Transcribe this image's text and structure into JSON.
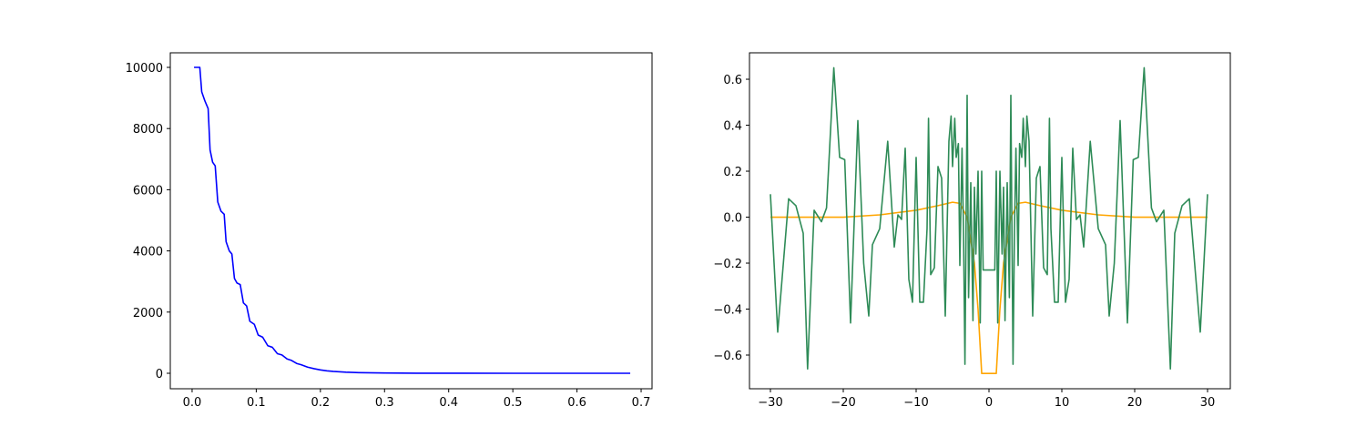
{
  "chart_data": [
    {
      "type": "line",
      "x": [
        0.003,
        0.012,
        0.015,
        0.02,
        0.025,
        0.028,
        0.032,
        0.036,
        0.04,
        0.045,
        0.05,
        0.053,
        0.058,
        0.062,
        0.066,
        0.07,
        0.075,
        0.08,
        0.085,
        0.09,
        0.097,
        0.103,
        0.11,
        0.118,
        0.125,
        0.133,
        0.14,
        0.148,
        0.155,
        0.163,
        0.17,
        0.18,
        0.19,
        0.2,
        0.21,
        0.22,
        0.24,
        0.26,
        0.3,
        0.35,
        0.4,
        0.5,
        0.6,
        0.683
      ],
      "series": [
        {
          "color": "#0000ff",
          "values": [
            10000,
            10000,
            9200,
            8900,
            8650,
            7300,
            6900,
            6780,
            5600,
            5300,
            5200,
            4300,
            4000,
            3900,
            3100,
            2950,
            2900,
            2300,
            2200,
            1700,
            1600,
            1250,
            1180,
            900,
            850,
            640,
            600,
            470,
            420,
            320,
            280,
            200,
            150,
            110,
            80,
            60,
            35,
            20,
            8,
            3,
            1,
            0,
            0,
            0
          ]
        }
      ],
      "xlim": [
        -0.034,
        0.717
      ],
      "ylim": [
        -506,
        10476
      ],
      "xticks": [
        {
          "value": 0,
          "label": "0.0"
        },
        0.1,
        0.2,
        0.3,
        0.4,
        0.5,
        0.6,
        0.7
      ],
      "yticks": [
        0,
        2000,
        4000,
        6000,
        8000,
        10000
      ]
    },
    {
      "type": "line",
      "series": [
        {
          "color": "#ffa500",
          "x": [
            -30,
            -20,
            -15,
            -10,
            -7,
            -5,
            -4,
            -3,
            -2,
            -1.5,
            -1,
            1,
            1.5,
            2,
            3,
            4,
            5,
            7,
            10,
            15,
            20,
            30
          ],
          "values": [
            0,
            0,
            0.01,
            0.03,
            0.05,
            0.065,
            0.06,
            0,
            -0.2,
            -0.4,
            -0.68,
            -0.68,
            -0.4,
            -0.2,
            0,
            0.06,
            0.065,
            0.05,
            0.03,
            0.01,
            0,
            0
          ]
        },
        {
          "color": "#2e8b57",
          "x": [
            -30,
            -29,
            -27.5,
            -26.5,
            -25.5,
            -24.9,
            -24,
            -23,
            -22.3,
            -21.3,
            -20.5,
            -19.8,
            -19,
            -18,
            -17.2,
            -16.5,
            -16,
            -15,
            -13.9,
            -13,
            -12.5,
            -12,
            -11.5,
            -11,
            -10.5,
            -10,
            -9.5,
            -9,
            -8.5,
            -8.3,
            -8,
            -7.5,
            -7,
            -6.5,
            -6,
            -5.5,
            -5.2,
            -5,
            -4.7,
            -4.5,
            -4.2,
            -4,
            -3.7,
            -3.5,
            -3.3,
            -3,
            -2.8,
            -2.5,
            -2.2,
            -2,
            -1.8,
            -1.5,
            -1.2,
            -1,
            -0.8,
            0.8,
            1,
            1.2,
            1.5,
            1.8,
            2,
            2.2,
            2.5,
            2.8,
            3,
            3.3,
            3.5,
            3.7,
            4,
            4.2,
            4.5,
            4.7,
            5,
            5.2,
            5.5,
            6,
            6.5,
            7,
            7.5,
            8,
            8.3,
            8.5,
            9,
            9.5,
            10,
            10.5,
            11,
            11.5,
            12,
            12.5,
            13,
            13.9,
            15,
            16,
            16.5,
            17.2,
            18,
            19,
            19.8,
            20.5,
            21.3,
            22.3,
            23,
            24,
            24.9,
            25.5,
            26.5,
            27.5,
            29,
            30
          ],
          "values": [
            0.1,
            -0.5,
            0.08,
            0.05,
            -0.07,
            -0.66,
            0.03,
            -0.02,
            0.04,
            0.65,
            0.26,
            0.25,
            -0.46,
            0.42,
            -0.2,
            -0.43,
            -0.12,
            -0.05,
            0.33,
            -0.13,
            0.01,
            -0.01,
            0.3,
            -0.27,
            -0.37,
            0.26,
            -0.37,
            -0.37,
            -0.05,
            0.43,
            -0.25,
            -0.22,
            0.22,
            0.17,
            -0.43,
            0.33,
            0.44,
            0.22,
            0.43,
            0.26,
            0.32,
            -0.21,
            0.3,
            -0.05,
            -0.64,
            0.53,
            -0.35,
            0.15,
            -0.45,
            0.13,
            -0.16,
            0.2,
            -0.46,
            0.2,
            -0.23,
            -0.23,
            0.2,
            -0.46,
            0.2,
            -0.16,
            0.13,
            -0.45,
            0.15,
            -0.35,
            0.53,
            -0.64,
            -0.05,
            0.3,
            -0.21,
            0.32,
            0.26,
            0.43,
            0.22,
            0.44,
            0.33,
            -0.43,
            0.17,
            0.22,
            -0.22,
            -0.25,
            0.43,
            -0.05,
            -0.37,
            -0.37,
            0.26,
            -0.37,
            -0.27,
            0.3,
            -0.01,
            0.01,
            -0.13,
            0.33,
            -0.05,
            -0.12,
            -0.43,
            -0.2,
            0.42,
            -0.46,
            0.25,
            0.26,
            0.65,
            0.04,
            -0.02,
            0.03,
            -0.66,
            -0.07,
            0.05,
            0.08,
            -0.5,
            0.1
          ]
        }
      ],
      "xlim": [
        -32.875,
        33.125
      ],
      "ylim": [
        -0.7465,
        0.715
      ],
      "xticks": [
        {
          "value": -30,
          "label": "−30"
        },
        {
          "value": -20,
          "label": "−20"
        },
        {
          "value": -10,
          "label": "−10"
        },
        0,
        10,
        20,
        30
      ],
      "yticks": [
        {
          "value": -0.6,
          "label": "−0.6"
        },
        {
          "value": -0.4,
          "label": "−0.4"
        },
        {
          "value": -0.2,
          "label": "−0.2"
        },
        {
          "value": 0,
          "label": "0.0"
        },
        0.2,
        0.4,
        0.6
      ]
    }
  ]
}
